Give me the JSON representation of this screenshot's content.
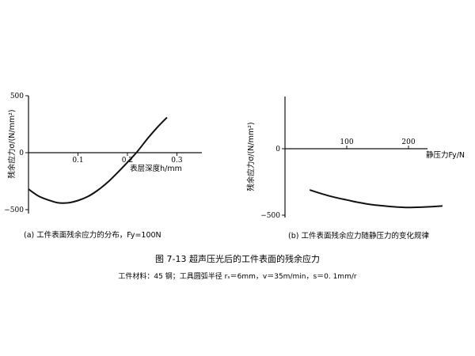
{
  "figure": {
    "title": "图 7-13 超声压光后的工件表面的残余应力",
    "note": "工件材料：45 钢；工具圆弧半径 rₛ＝6mm，v＝35m/min，s＝0. 1mm/r"
  },
  "chart_data": [
    {
      "type": "line",
      "caption": "(a) 工件表面残余应力的分布，Fy=100N",
      "xlabel": "表层深度h/mm",
      "ylabel": "残余应力σ/(N/mm²)",
      "xlim": [
        0,
        0.35
      ],
      "ylim": [
        -500,
        500
      ],
      "x_ticks": [
        0.1,
        0.2,
        0.3
      ],
      "x_tick_labels": [
        "0.1",
        "0.2",
        "0.3"
      ],
      "y_ticks": [
        500,
        0,
        -500
      ],
      "y_tick_labels": [
        "500",
        "0",
        "−500"
      ],
      "series": [
        {
          "x": [
            0,
            0.02,
            0.04,
            0.06,
            0.08,
            0.1,
            0.12,
            0.14,
            0.16,
            0.18,
            0.2,
            0.22,
            0.24,
            0.26,
            0.28
          ],
          "y": [
            -320,
            -380,
            -415,
            -440,
            -440,
            -420,
            -385,
            -330,
            -260,
            -175,
            -85,
            10,
            120,
            220,
            310
          ]
        }
      ]
    },
    {
      "type": "line",
      "caption": "(b) 工件表面残余应力随静压力的变化规律",
      "xlabel": "静压力Fy/N",
      "ylabel": "残余应力σ/(N/mm²)",
      "xlim": [
        0,
        275
      ],
      "ylim": [
        -550,
        380
      ],
      "x_ticks": [
        100,
        200
      ],
      "x_tick_labels": [
        "100",
        "200"
      ],
      "y_ticks": [
        0,
        -500
      ],
      "y_tick_labels": [
        "0",
        "−500"
      ],
      "series": [
        {
          "x": [
            40,
            60,
            80,
            100,
            120,
            140,
            160,
            180,
            200,
            220,
            240,
            255
          ],
          "y": [
            -310,
            -340,
            -365,
            -385,
            -405,
            -420,
            -430,
            -438,
            -442,
            -440,
            -435,
            -430
          ]
        }
      ]
    }
  ]
}
